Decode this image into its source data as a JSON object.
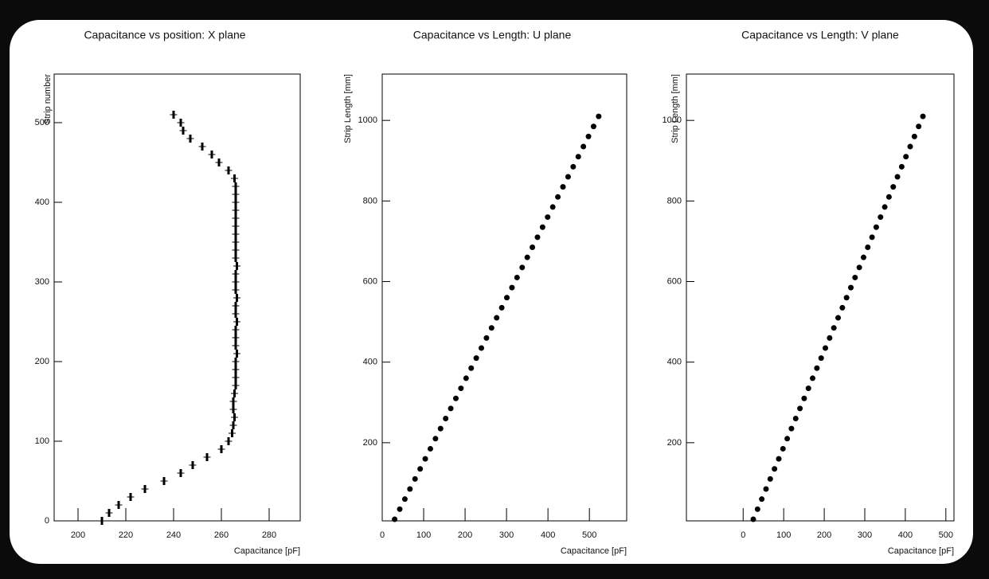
{
  "chart_data": [
    {
      "type": "scatter",
      "title": "Capacitance vs position: X plane",
      "x_label": "Capacitance [pF]",
      "y_label": "Strip number",
      "xlim": [
        190,
        293
      ],
      "ylim": [
        0,
        561
      ],
      "xticks": [
        200,
        220,
        240,
        260,
        280
      ],
      "yticks": [
        0,
        100,
        200,
        300,
        400,
        500
      ],
      "series": [
        {
          "color": "#000000",
          "xerr": 1.5,
          "x": [
            210,
            213,
            217,
            222,
            228,
            236,
            243,
            248,
            254,
            260,
            263,
            264.5,
            265,
            265.5,
            265,
            265,
            265.5,
            266,
            266,
            266,
            266,
            266.5,
            266,
            266,
            266,
            266.5,
            266,
            266,
            266.5,
            266,
            266,
            266,
            266.5,
            266,
            266,
            266,
            266,
            266,
            266,
            266,
            266,
            266,
            266,
            265.5,
            263,
            259,
            256,
            252,
            247,
            244,
            243,
            240
          ],
          "y": [
            0,
            10,
            20,
            30,
            40,
            50,
            60,
            70,
            80,
            90,
            100,
            110,
            120,
            130,
            140,
            150,
            160,
            170,
            180,
            190,
            200,
            210,
            220,
            230,
            240,
            250,
            260,
            270,
            280,
            290,
            300,
            310,
            320,
            330,
            340,
            350,
            360,
            370,
            380,
            390,
            400,
            410,
            420,
            430,
            440,
            450,
            460,
            470,
            480,
            490,
            500,
            510
          ]
        }
      ]
    },
    {
      "type": "scatter",
      "title": "Capacitance vs Length: U plane",
      "x_label": "Capacitance [pF]",
      "y_label": "Strip Length [mm]",
      "xlim": [
        0,
        590
      ],
      "ylim": [
        6,
        1115
      ],
      "xticks": [
        0,
        100,
        200,
        300,
        400,
        500
      ],
      "yticks": [
        200,
        400,
        600,
        800,
        1000
      ],
      "series": [
        {
          "color": "#000000",
          "x": [
            30,
            42.3,
            54.6,
            66.9,
            79.2,
            91.6,
            103.9,
            116.2,
            128.5,
            140.8,
            153.1,
            165.4,
            177.7,
            190,
            202.4,
            214.7,
            227,
            239.3,
            251.6,
            263.9,
            276.2,
            288.5,
            300.8,
            313.1,
            325.4,
            337.8,
            350.1,
            362.4,
            374.7,
            387,
            399.3,
            411.6,
            423.9,
            436.2,
            448.6,
            460.9,
            473.2,
            485.5,
            497.8,
            510.1,
            522.4
          ],
          "y": [
            10,
            35,
            60,
            85,
            110,
            135,
            160,
            185,
            210,
            235,
            260,
            285,
            310,
            335,
            360,
            385,
            410,
            435,
            460,
            485,
            510,
            535,
            560,
            585,
            610,
            635,
            660,
            685,
            710,
            735,
            760,
            785,
            810,
            835,
            860,
            885,
            910,
            935,
            960,
            985,
            1010
          ]
        }
      ]
    },
    {
      "type": "scatter",
      "title": "Capacitance vs Length: V plane",
      "x_label": "Capacitance [pF]",
      "y_label": "Strip Length [mm]",
      "xlim": [
        -140,
        520
      ],
      "ylim": [
        6,
        1115
      ],
      "xticks": [
        0,
        100,
        200,
        300,
        400,
        500
      ],
      "yticks": [
        200,
        400,
        600,
        800,
        1000
      ],
      "series": [
        {
          "color": "#000000",
          "x": [
            25,
            35.5,
            45.9,
            56.4,
            66.8,
            77.3,
            87.8,
            98.2,
            108.7,
            119.1,
            129.6,
            140.1,
            150.5,
            161,
            171.4,
            181.9,
            192.4,
            202.8,
            213.3,
            223.7,
            234.2,
            244.7,
            255.1,
            265.6,
            276,
            286.5,
            297,
            307.4,
            317.9,
            328.3,
            338.8,
            349.3,
            359.7,
            370.2,
            380.6,
            391.1,
            401.6,
            412,
            422.5,
            432.9,
            443.4
          ],
          "y": [
            10,
            35,
            60,
            85,
            110,
            135,
            160,
            185,
            210,
            235,
            260,
            285,
            310,
            335,
            360,
            385,
            410,
            435,
            460,
            485,
            510,
            535,
            560,
            585,
            610,
            635,
            660,
            685,
            710,
            735,
            760,
            785,
            810,
            835,
            860,
            885,
            910,
            935,
            960,
            985,
            1010
          ]
        }
      ]
    }
  ]
}
